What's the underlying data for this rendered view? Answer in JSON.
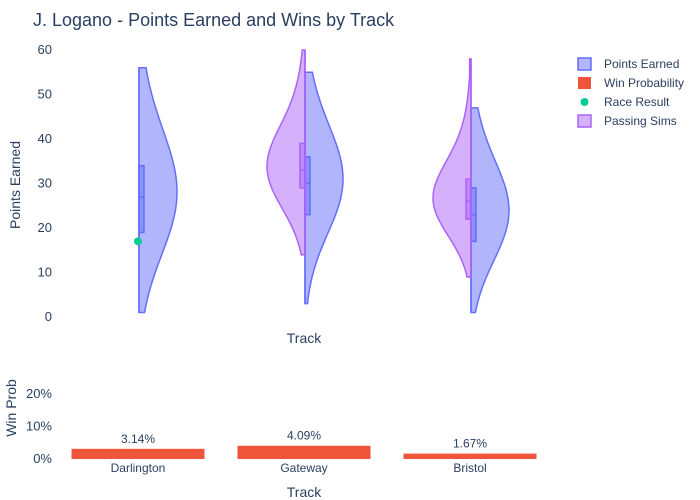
{
  "chart_data": [
    {
      "type": "violin",
      "title": "J. Logano - Points Earned and Wins by Track",
      "xlabel": "Track",
      "ylabel": "Points Earned",
      "ylim": [
        0,
        60
      ],
      "yticks": [
        0,
        10,
        20,
        30,
        40,
        50,
        60
      ],
      "categories": [
        "Darlington",
        "Gateway",
        "Bristol"
      ],
      "series": [
        {
          "name": "Points Earned",
          "side": "positive",
          "color": "#636efa",
          "fill": "rgba(99,110,250,0.5)",
          "stats": [
            {
              "min": 1,
              "q1": 19,
              "median": 27,
              "q3": 34,
              "max": 56
            },
            {
              "min": 3,
              "q1": 23,
              "median": 30,
              "q3": 36,
              "max": 55
            },
            {
              "min": 1,
              "q1": 17,
              "median": 23,
              "q3": 29,
              "max": 47
            }
          ]
        },
        {
          "name": "Passing Sims",
          "side": "negative",
          "color": "#ab63fa",
          "fill": "rgba(171,99,250,0.5)",
          "stats": [
            null,
            {
              "min": 14,
              "q1": 29,
              "median": 33,
              "q3": 39,
              "max": 60
            },
            {
              "min": 9,
              "q1": 22,
              "median": 26,
              "q3": 31,
              "max": 58
            }
          ]
        }
      ],
      "race_result": {
        "name": "Race Result",
        "color": "#00cc96",
        "points": [
          {
            "category": "Darlington",
            "y": 17
          }
        ]
      },
      "legend": [
        {
          "label": "Points Earned",
          "color": "#636efa",
          "shape": "box"
        },
        {
          "label": "Win Probability",
          "color": "#ef553b",
          "shape": "bar"
        },
        {
          "label": "Race Result",
          "color": "#00cc96",
          "shape": "dot"
        },
        {
          "label": "Passing Sims",
          "color": "#ab63fa",
          "shape": "box"
        }
      ],
      "legend_position": "top-right"
    },
    {
      "type": "bar",
      "xlabel": "Track",
      "ylabel": "Win Prob",
      "categories": [
        "Darlington",
        "Gateway",
        "Bristol"
      ],
      "values": [
        3.14,
        4.09,
        1.67
      ],
      "value_labels": [
        "3.14%",
        "4.09%",
        "1.67%"
      ],
      "ylim": [
        0,
        25
      ],
      "yticks": [
        0,
        10,
        20
      ],
      "ytick_labels": [
        "0%",
        "10%",
        "20%"
      ],
      "series_name": "Win Probability",
      "color": "#ef553b"
    }
  ]
}
